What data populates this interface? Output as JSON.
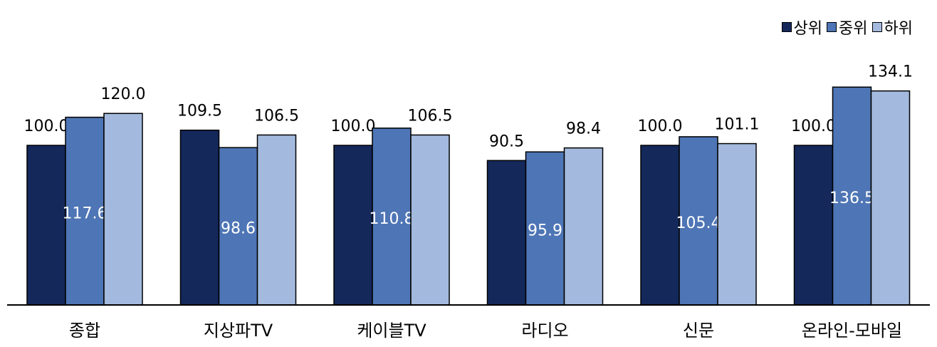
{
  "chart_data": {
    "type": "bar",
    "categories": [
      "종합",
      "지상파TV",
      "케이블TV",
      "라디오",
      "신문",
      "온라인-모바일"
    ],
    "series": [
      {
        "name": "상위",
        "color": "#14285a",
        "values": [
          100.0,
          109.5,
          100.0,
          90.5,
          100.0,
          100.0
        ]
      },
      {
        "name": "중위",
        "color": "#4e75b5",
        "values": [
          117.6,
          98.6,
          110.8,
          95.9,
          105.4,
          136.5
        ]
      },
      {
        "name": "하위",
        "color": "#a3bade",
        "values": [
          120.0,
          106.5,
          106.5,
          98.4,
          101.1,
          134.1
        ]
      }
    ],
    "value_labels": [
      [
        "100.0",
        "117.6",
        "120.0"
      ],
      [
        "109.5",
        "98.6",
        "106.5"
      ],
      [
        "100.0",
        "110.8",
        "106.5"
      ],
      [
        "90.5",
        "95.9",
        "98.4"
      ],
      [
        "100.0",
        "105.4",
        "101.1"
      ],
      [
        "100.0",
        "136.5",
        "134.1"
      ]
    ],
    "ylim": [
      0,
      145
    ],
    "legend_position": "top-right",
    "grid": false
  }
}
